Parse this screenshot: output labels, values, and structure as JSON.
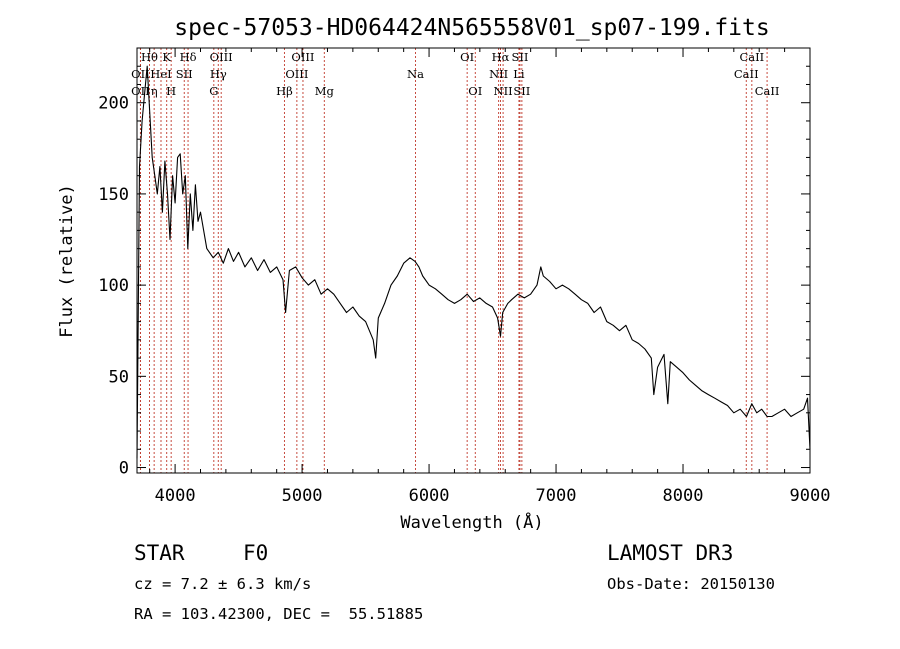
{
  "chart_data": {
    "type": "line",
    "title": "spec-57053-HD064424N565558V01_sp07-199.fits",
    "xlabel": "Wavelength (Å)",
    "ylabel": "Flux (relative)",
    "xlim": [
      3700,
      9000
    ],
    "ylim": [
      -3,
      230
    ],
    "xticks": [
      4000,
      5000,
      6000,
      7000,
      8000,
      9000
    ],
    "yticks": [
      0,
      50,
      100,
      150,
      200
    ],
    "series": [
      {
        "name": "flux",
        "x": [
          3700,
          3720,
          3740,
          3760,
          3780,
          3800,
          3820,
          3840,
          3860,
          3880,
          3900,
          3920,
          3940,
          3960,
          3980,
          4000,
          4020,
          4040,
          4060,
          4080,
          4100,
          4120,
          4140,
          4160,
          4180,
          4200,
          4250,
          4300,
          4340,
          4380,
          4420,
          4460,
          4500,
          4550,
          4600,
          4650,
          4700,
          4750,
          4800,
          4850,
          4870,
          4900,
          4950,
          5000,
          5050,
          5100,
          5150,
          5200,
          5250,
          5300,
          5350,
          5400,
          5450,
          5500,
          5530,
          5560,
          5580,
          5600,
          5650,
          5700,
          5750,
          5800,
          5850,
          5890,
          5920,
          5950,
          6000,
          6050,
          6100,
          6150,
          6200,
          6250,
          6300,
          6350,
          6400,
          6450,
          6500,
          6540,
          6563,
          6580,
          6620,
          6650,
          6700,
          6750,
          6800,
          6850,
          6880,
          6900,
          6950,
          7000,
          7050,
          7100,
          7150,
          7200,
          7250,
          7300,
          7350,
          7400,
          7450,
          7500,
          7550,
          7600,
          7650,
          7700,
          7750,
          7770,
          7800,
          7850,
          7880,
          7900,
          7950,
          8000,
          8050,
          8100,
          8150,
          8200,
          8250,
          8300,
          8350,
          8400,
          8450,
          8500,
          8542,
          8580,
          8620,
          8662,
          8700,
          8750,
          8800,
          8850,
          8900,
          8950,
          8980,
          9000
        ],
        "values": [
          5,
          165,
          190,
          205,
          220,
          195,
          170,
          160,
          150,
          165,
          140,
          168,
          150,
          125,
          160,
          145,
          170,
          172,
          150,
          160,
          120,
          150,
          130,
          155,
          135,
          140,
          120,
          115,
          118,
          112,
          120,
          113,
          118,
          110,
          115,
          108,
          114,
          107,
          110,
          103,
          85,
          108,
          110,
          104,
          100,
          103,
          95,
          98,
          95,
          90,
          85,
          88,
          83,
          80,
          75,
          70,
          60,
          82,
          90,
          100,
          105,
          112,
          115,
          113,
          110,
          105,
          100,
          98,
          95,
          92,
          90,
          92,
          95,
          91,
          93,
          90,
          88,
          82,
          72,
          85,
          90,
          92,
          95,
          93,
          95,
          100,
          110,
          105,
          102,
          98,
          100,
          98,
          95,
          92,
          90,
          85,
          88,
          80,
          78,
          75,
          78,
          70,
          68,
          65,
          60,
          40,
          55,
          62,
          35,
          58,
          55,
          52,
          48,
          45,
          42,
          40,
          38,
          36,
          34,
          30,
          32,
          28,
          35,
          30,
          32,
          28,
          28,
          30,
          32,
          28,
          30,
          32,
          38,
          10
        ]
      }
    ],
    "emission_lines": [
      {
        "label": "Hθ",
        "wavelength": 3798,
        "row": 1
      },
      {
        "label": "OII",
        "wavelength": 3727,
        "row": 2
      },
      {
        "label": "OII",
        "wavelength": 3727,
        "row": 3
      },
      {
        "label": "K",
        "wavelength": 3934,
        "row": 1
      },
      {
        "label": "HeI",
        "wavelength": 3889,
        "row": 2
      },
      {
        "label": "η",
        "wavelength": 3835,
        "row": 3
      },
      {
        "label": "SII",
        "wavelength": 4072,
        "row": 2
      },
      {
        "label": "H",
        "wavelength": 3969,
        "row": 3
      },
      {
        "label": "Hδ",
        "wavelength": 4102,
        "row": 1
      },
      {
        "label": "OIII",
        "wavelength": 4363,
        "row": 1
      },
      {
        "label": "Hγ",
        "wavelength": 4340,
        "row": 2
      },
      {
        "label": "G",
        "wavelength": 4305,
        "row": 3
      },
      {
        "label": "Hβ",
        "wavelength": 4861,
        "row": 3
      },
      {
        "label": "OIII",
        "wavelength": 5007,
        "row": 1
      },
      {
        "label": "OIII",
        "wavelength": 4959,
        "row": 2
      },
      {
        "label": "Mg",
        "wavelength": 5175,
        "row": 3
      },
      {
        "label": "Na",
        "wavelength": 5893,
        "row": 2
      },
      {
        "label": "OI",
        "wavelength": 6300,
        "row": 1
      },
      {
        "label": "OI",
        "wavelength": 6364,
        "row": 3
      },
      {
        "label": "Hα",
        "wavelength": 6563,
        "row": 1
      },
      {
        "label": "NII",
        "wavelength": 6548,
        "row": 2
      },
      {
        "label": "NII",
        "wavelength": 6583,
        "row": 3
      },
      {
        "label": "SII",
        "wavelength": 6716,
        "row": 1
      },
      {
        "label": "Li",
        "wavelength": 6708,
        "row": 2
      },
      {
        "label": "SII",
        "wavelength": 6731,
        "row": 3
      },
      {
        "label": "CaII",
        "wavelength": 8542,
        "row": 1
      },
      {
        "label": "CaII",
        "wavelength": 8498,
        "row": 2
      },
      {
        "label": "CaII",
        "wavelength": 8662,
        "row": 3
      }
    ],
    "annotations": {
      "object_class": "STAR",
      "subclass": "F0",
      "survey": "LAMOST DR3",
      "redshift": "cz = 7.2 ± 6.3 km/s",
      "obs_date": "Obs-Date: 20150130",
      "coords": "RA = 103.42300, DEC =  55.51885"
    }
  }
}
